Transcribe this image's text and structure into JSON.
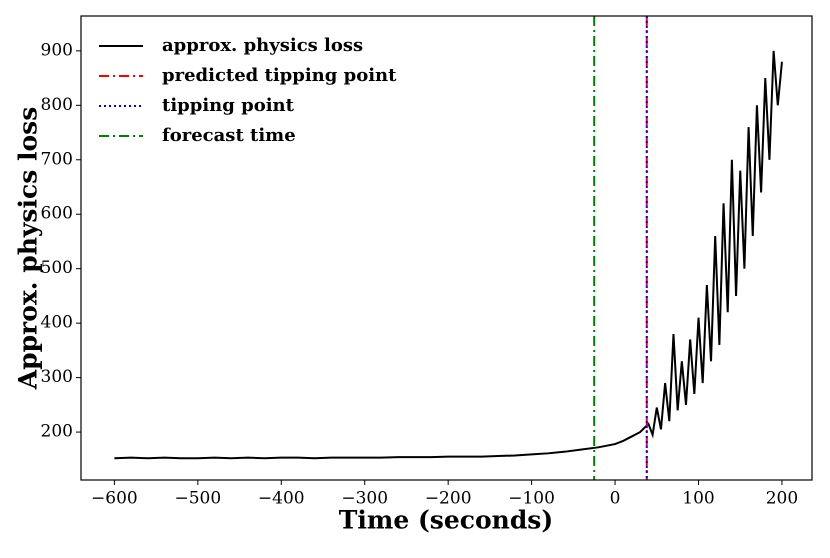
{
  "chart_data": {
    "type": "line",
    "xlabel": "Time (seconds)",
    "ylabel": "Approx. physics loss",
    "x": [
      -600,
      -580,
      -560,
      -540,
      -520,
      -500,
      -480,
      -460,
      -440,
      -420,
      -400,
      -380,
      -360,
      -340,
      -320,
      -300,
      -280,
      -260,
      -240,
      -220,
      -200,
      -180,
      -160,
      -140,
      -120,
      -100,
      -80,
      -60,
      -40,
      -20,
      0,
      10,
      20,
      30,
      40,
      45,
      50,
      55,
      60,
      65,
      70,
      75,
      80,
      85,
      90,
      95,
      100,
      105,
      110,
      115,
      120,
      125,
      130,
      135,
      140,
      145,
      150,
      155,
      160,
      165,
      170,
      175,
      180,
      185,
      190,
      195,
      200
    ],
    "series": [
      {
        "name": "approx. physics loss",
        "color": "#000000",
        "values": [
          152,
          153,
          152,
          153,
          152,
          152,
          153,
          152,
          153,
          152,
          153,
          153,
          152,
          153,
          153,
          153,
          153,
          154,
          154,
          154,
          155,
          155,
          155,
          156,
          157,
          159,
          161,
          164,
          168,
          172,
          178,
          184,
          192,
          200,
          215,
          195,
          245,
          205,
          290,
          220,
          380,
          240,
          330,
          250,
          370,
          270,
          410,
          290,
          470,
          330,
          560,
          360,
          620,
          420,
          700,
          450,
          680,
          500,
          760,
          560,
          800,
          640,
          850,
          700,
          900,
          800,
          880
        ]
      }
    ],
    "vlines": [
      {
        "name": "predicted tipping point",
        "x": 38,
        "color": "#ff0000",
        "dash": "dashdot"
      },
      {
        "name": "tipping point",
        "x": 38,
        "color": "#0000ff",
        "dash": "dotted"
      },
      {
        "name": "forecast time",
        "x": -25,
        "color": "#008000",
        "dash": "dashdot"
      }
    ],
    "xlim": [
      -640,
      236
    ],
    "ylim": [
      112,
      964
    ],
    "xticks": [
      {
        "value": -600,
        "label": "−600"
      },
      {
        "value": -500,
        "label": "−500"
      },
      {
        "value": -400,
        "label": "−400"
      },
      {
        "value": -300,
        "label": "−300"
      },
      {
        "value": -200,
        "label": "−200"
      },
      {
        "value": -100,
        "label": "−100"
      },
      0,
      100,
      200
    ],
    "yticks": [
      200,
      300,
      400,
      500,
      600,
      700,
      800,
      900
    ],
    "legend": "upper left"
  }
}
